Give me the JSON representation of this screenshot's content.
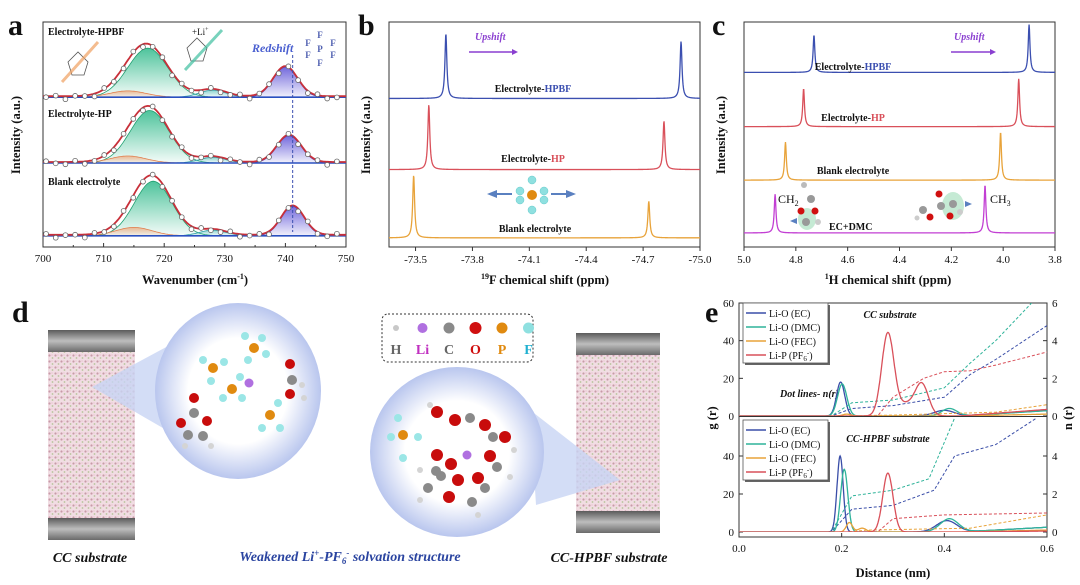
{
  "panels": {
    "a": "a",
    "b": "b",
    "c": "c",
    "d": "d",
    "e": "e"
  },
  "colors": {
    "hpbf": "#3b4fb0",
    "hp": "#d9505a",
    "blank": "#e8a33a",
    "ecdmc": "#c23fd3",
    "green": "#2fb98a",
    "orange": "#f0a070",
    "teal": "#3fb7b0",
    "violet": "#5a4fd6",
    "arrow": "#8a3fd0",
    "legendBlue": "#2a44a0"
  },
  "chart_data": [
    {
      "id": "a",
      "type": "line",
      "xlabel": "Wavenumber (cm-1)",
      "xlabel_main": "Wavenumber (cm",
      "xlabel_sup": "-1",
      "xlabel_end": ")",
      "ylabel": "Intensity (a.u.)",
      "xlim": [
        700,
        750
      ],
      "xticks": [
        700,
        710,
        720,
        730,
        740,
        750
      ],
      "annotations": {
        "redshift": "Redshift",
        "li": "+Li",
        "li_sup": "+",
        "pf6_atoms": [
          "F",
          "F",
          "F",
          "F",
          "F",
          "F",
          "P"
        ],
        "dashed_line_x": 741.2
      },
      "series": [
        {
          "name": "Electrolyte-HPBF",
          "offset": 1.98,
          "components": [
            [
              717.3,
              0.7,
              3.3,
              "green"
            ],
            [
              714,
              0.09,
              3,
              "orange"
            ],
            [
              728,
              0.1,
              2.2,
              "teal"
            ],
            [
              740,
              0.43,
              2.0,
              "violet"
            ]
          ]
        },
        {
          "name": "Electrolyte-HP",
          "offset": 1.04,
          "components": [
            [
              717.6,
              0.75,
              3.2,
              "green"
            ],
            [
              714,
              0.1,
              3,
              "orange"
            ],
            [
              728,
              0.08,
              2.2,
              "teal"
            ],
            [
              740.6,
              0.39,
              2.0,
              "violet"
            ]
          ]
        },
        {
          "name": "Blank electrolyte",
          "offset": 0,
          "components": [
            [
              718.2,
              0.78,
              3.1,
              "green"
            ],
            [
              715,
              0.12,
              3,
              "orange"
            ],
            [
              728,
              0.08,
              2.2,
              "teal"
            ],
            [
              741.2,
              0.42,
              1.9,
              "violet"
            ]
          ]
        }
      ]
    },
    {
      "id": "b",
      "type": "line",
      "xlabel_sup": "19",
      "xlabel": "F chemical shift (ppm)",
      "ylabel": "Intensity (a.u.)",
      "xlim": [
        -73.36,
        -75.0
      ],
      "xticks": [
        -73.5,
        -73.8,
        -74.1,
        -74.4,
        -74.7,
        -75.0
      ],
      "xtick_labels": [
        "-73.5",
        "-73.8",
        "-74.1",
        "-74.4",
        "-74.7",
        "-75.0"
      ],
      "annotations": {
        "upshift": "Upshift"
      },
      "series": [
        {
          "name": "Electrolyte-HPBF",
          "prefix": "Electrolyte-",
          "suffix": "HPBF",
          "color": "hpbf",
          "offset": 2.11,
          "peaks": [
            [
              -73.66,
              0.92
            ],
            [
              -74.9,
              0.81
            ]
          ]
        },
        {
          "name": "Electrolyte-HP",
          "prefix": "Electrolyte-",
          "suffix": "HP",
          "color": "hp",
          "offset": 1.1,
          "peaks": [
            [
              -73.57,
              0.92
            ],
            [
              -74.81,
              0.69
            ]
          ]
        },
        {
          "name": "Blank electrolyte",
          "prefix": "Blank electrolyte",
          "suffix": "",
          "color": "blank",
          "offset": 0.13,
          "peaks": [
            [
              -73.49,
              0.89
            ],
            [
              -74.73,
              0.52
            ]
          ]
        }
      ]
    },
    {
      "id": "c",
      "type": "line",
      "xlabel_sup": "1",
      "xlabel": "H chemical shift (ppm)",
      "ylabel": "Intensity (a.u.)",
      "xlim": [
        5.0,
        3.8
      ],
      "xticks": [
        5.0,
        4.8,
        4.6,
        4.4,
        4.2,
        4.0,
        3.8
      ],
      "xtick_labels": [
        "5.0",
        "4.8",
        "4.6",
        "4.4",
        "4.2",
        "4.0",
        "3.8"
      ],
      "annotations": {
        "upshift": "Upshift",
        "ch2": "CH",
        "ch2_sub": "2",
        "ch3": "CH",
        "ch3_sub": "3",
        "ecdmc": "EC+DMC"
      },
      "series": [
        {
          "name": "Electrolyte-HPBF",
          "prefix": "Electrolyte-",
          "suffix": "HPBF",
          "color": "hpbf",
          "offset": 2.48,
          "peaks": [
            [
              4.73,
              0.53
            ],
            [
              3.9,
              0.68
            ]
          ]
        },
        {
          "name": "Electrolyte-HP",
          "prefix": "Electrolyte-",
          "suffix": "HP",
          "color": "hp",
          "offset": 1.71,
          "peaks": [
            [
              4.77,
              0.54
            ],
            [
              3.94,
              0.68
            ]
          ]
        },
        {
          "name": "Blank electrolyte",
          "prefix": "Blank electrolyte",
          "suffix": "",
          "color": "blank",
          "offset": 0.95,
          "peaks": [
            [
              4.84,
              0.54
            ],
            [
              4.01,
              0.68
            ]
          ]
        },
        {
          "name": "EC+DMC",
          "prefix": "",
          "suffix": "",
          "color": "ecdmc",
          "offset": 0.2,
          "peaks": [
            [
              4.88,
              0.55
            ],
            [
              4.07,
              0.68
            ]
          ]
        }
      ]
    },
    {
      "id": "e",
      "type": "line",
      "xlabel": "Distance (nm)",
      "ylabel_left": "g (r)",
      "ylabel_right": "n (r)",
      "xlim": [
        0,
        0.6
      ],
      "xticks": [
        0.0,
        0.2,
        0.4,
        0.6
      ],
      "xtick_labels": [
        "0.0",
        "0.2",
        "0.4",
        "0.6"
      ],
      "note": "Dot lines- n(r)",
      "subplots": [
        {
          "title": "CC substrate",
          "g_ylim": [
            0,
            60
          ],
          "g_yticks": [
            0,
            20,
            40,
            60
          ],
          "n_ylim": [
            0,
            6
          ],
          "n_yticks": [
            0,
            2,
            4,
            6
          ],
          "series": [
            {
              "name": "Li-O (EC)",
              "label": "Li-O (EC)",
              "color": "#3a4ea8",
              "g_peaks": [
                [
                  0.198,
                  18,
                  0.008
                ],
                [
                  0.4,
                  3,
                  0.02
                ]
              ],
              "g_tail": 3,
              "n": [
                [
                  0.18,
                  0
                ],
                [
                  0.22,
                  0.4
                ],
                [
                  0.3,
                  0.55
                ],
                [
                  0.4,
                  1.0
                ],
                [
                  0.45,
                  2.2
                ],
                [
                  0.5,
                  3.0
                ],
                [
                  0.6,
                  4.8
                ]
              ]
            },
            {
              "name": "Li-O (DMC)",
              "label": "Li-O (DMC)",
              "color": "#2fb39a",
              "g_peaks": [
                [
                  0.201,
                  17,
                  0.009
                ],
                [
                  0.41,
                  4,
                  0.015
                ]
              ],
              "g_tail": 2.8,
              "n": [
                [
                  0.18,
                  0
                ],
                [
                  0.22,
                  0.7
                ],
                [
                  0.3,
                  0.85
                ],
                [
                  0.4,
                  1.5
                ],
                [
                  0.45,
                  2.8
                ],
                [
                  0.5,
                  4.0
                ],
                [
                  0.57,
                  6.0
                ]
              ]
            },
            {
              "name": "Li-O (FEC)",
              "label": "Li-O (FEC)",
              "color": "#e8a33a",
              "g_peaks": [
                [
                  0.21,
                  1,
                  0.008
                ]
              ],
              "g_tail": 1,
              "n": [
                [
                  0.2,
                  0
                ],
                [
                  0.3,
                  0.05
                ],
                [
                  0.5,
                  0.2
                ],
                [
                  0.6,
                  0.6
                ]
              ]
            },
            {
              "name": "Li-P (PF6-)",
              "label": "Li-P (PF",
              "label_sub": "6",
              "label_sup": "-",
              "label_end": ")",
              "color": "#d9505a",
              "g_peaks": [
                [
                  0.29,
                  44,
                  0.012
                ],
                [
                  0.356,
                  17,
                  0.013
                ],
                [
                  0.325,
                  6,
                  0.015
                ]
              ],
              "g_tail": 3.5,
              "n": [
                [
                  0.27,
                  0
                ],
                [
                  0.3,
                  1.0
                ],
                [
                  0.36,
                  2.0
                ],
                [
                  0.4,
                  2.35
                ],
                [
                  0.45,
                  2.4
                ],
                [
                  0.5,
                  2.7
                ],
                [
                  0.6,
                  3.4
                ]
              ]
            }
          ]
        },
        {
          "title": "CC-HPBF substrate",
          "g_ylim": [
            0,
            60
          ],
          "g_yticks": [
            0,
            20,
            40
          ],
          "n_ylim": [
            0,
            6
          ],
          "n_yticks": [
            0,
            2,
            4
          ],
          "series": [
            {
              "name": "Li-O (EC)",
              "label": "Li-O (EC)",
              "color": "#3a4ea8",
              "g_peaks": [
                [
                  0.197,
                  40,
                  0.006
                ],
                [
                  0.405,
                  6,
                  0.02
                ]
              ],
              "g_tail": 2.5,
              "n": [
                [
                  0.18,
                  0
                ],
                [
                  0.22,
                  1.2
                ],
                [
                  0.3,
                  1.4
                ],
                [
                  0.38,
                  2.2
                ],
                [
                  0.42,
                  4.0
                ],
                [
                  0.5,
                  4.6
                ],
                [
                  0.58,
                  6.0
                ]
              ]
            },
            {
              "name": "Li-O (DMC)",
              "label": "Li-O (DMC)",
              "color": "#2fb39a",
              "g_peaks": [
                [
                  0.205,
                  33,
                  0.007
                ],
                [
                  0.41,
                  7,
                  0.018
                ]
              ],
              "g_tail": 2.5,
              "n": [
                [
                  0.18,
                  0
                ],
                [
                  0.22,
                  1.9
                ],
                [
                  0.3,
                  2.2
                ],
                [
                  0.37,
                  2.8
                ],
                [
                  0.42,
                  6.0
                ]
              ]
            },
            {
              "name": "Li-O (FEC)",
              "label": "Li-O (FEC)",
              "color": "#e8a33a",
              "g_peaks": [
                [
                  0.215,
                  5,
                  0.006
                ],
                [
                  0.24,
                  2,
                  0.008
                ]
              ],
              "g_tail": 1,
              "n": [
                [
                  0.21,
                  0
                ],
                [
                  0.25,
                  0.1
                ],
                [
                  0.45,
                  0.2
                ],
                [
                  0.6,
                  0.9
                ]
              ]
            },
            {
              "name": "Li-P (PF6-)",
              "label": "Li-P (PF",
              "label_sub": "6",
              "label_sup": "-",
              "label_end": ")",
              "color": "#d9505a",
              "g_peaks": [
                [
                  0.29,
                  31,
                  0.01
                ]
              ],
              "g_tail": 0.5,
              "n": [
                [
                  0.27,
                  0
                ],
                [
                  0.3,
                  0.7
                ],
                [
                  0.4,
                  0.9
                ],
                [
                  0.6,
                  1.0
                ]
              ]
            }
          ]
        }
      ]
    }
  ],
  "panel_d": {
    "legend": [
      {
        "symbol": "H",
        "color": "#c8c8c8",
        "text": "#666666"
      },
      {
        "symbol": "Li",
        "color": "#b070e0",
        "text": "#c030c0"
      },
      {
        "symbol": "C",
        "color": "#8a8a8a",
        "text": "#666666"
      },
      {
        "symbol": "O",
        "color": "#d01010",
        "text": "#d01010"
      },
      {
        "symbol": "P",
        "color": "#e08a10",
        "text": "#e08a10"
      },
      {
        "symbol": "F",
        "color": "#8fe0e0",
        "text": "#20b0d0"
      }
    ],
    "label_left": "CC substrate",
    "label_middle": "Weakened Li",
    "label_middle_sup1": "+",
    "label_middle_2": "-PF",
    "label_middle_sub": "6",
    "label_middle_sup2": "-",
    "label_middle_end": " solvation structure",
    "label_right": "CC-HPBF substrate"
  }
}
